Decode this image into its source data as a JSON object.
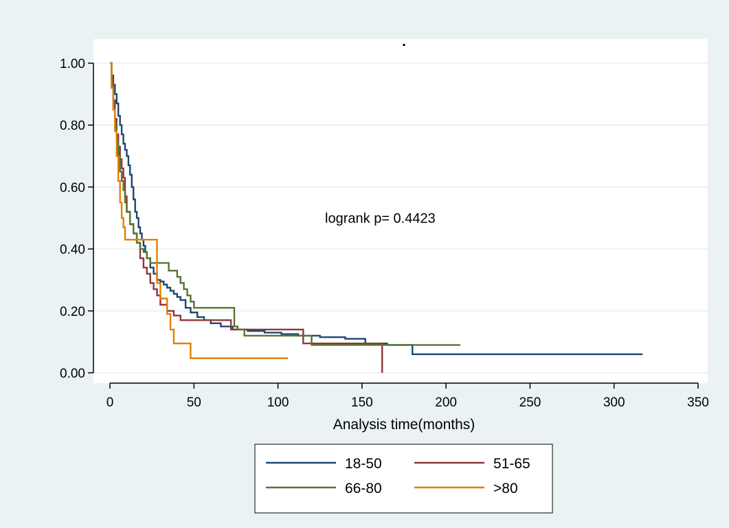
{
  "chart_data": {
    "type": "line",
    "title": ".",
    "xlabel": "Analysis time(months)",
    "ylabel": "",
    "xlim": [
      0,
      350
    ],
    "ylim": [
      0,
      1
    ],
    "xticks": [
      0,
      50,
      100,
      150,
      200,
      250,
      300,
      350
    ],
    "yticks": [
      0,
      0.2,
      0.4,
      0.6,
      0.8,
      1.0
    ],
    "xtick_labels": [
      "0",
      "50",
      "100",
      "150",
      "200",
      "250",
      "300",
      "350"
    ],
    "ytick_labels": [
      "0.00",
      "0.20",
      "0.40",
      "0.60",
      "0.80",
      "1.00"
    ],
    "grid": "horizontal",
    "step": true,
    "annotation": {
      "text": "logrank  p= 0.4423",
      "x": 128,
      "y": 0.5
    },
    "legend_placement": "bottom",
    "series": [
      {
        "name": "18-50",
        "color": "#1a476f",
        "x": [
          0,
          1,
          2,
          3,
          4,
          5,
          6,
          7,
          8,
          9,
          10,
          11,
          12,
          13,
          14,
          15,
          16,
          17,
          18,
          19,
          20,
          21,
          22,
          24,
          26,
          28,
          30,
          32,
          34,
          36,
          38,
          40,
          42,
          45,
          48,
          52,
          56,
          60,
          66,
          73,
          82,
          92,
          102,
          112,
          125,
          140,
          152,
          165,
          180,
          317
        ],
        "y": [
          1.0,
          0.96,
          0.93,
          0.9,
          0.87,
          0.83,
          0.8,
          0.77,
          0.74,
          0.72,
          0.7,
          0.67,
          0.64,
          0.6,
          0.56,
          0.52,
          0.5,
          0.47,
          0.45,
          0.43,
          0.41,
          0.39,
          0.37,
          0.34,
          0.32,
          0.3,
          0.295,
          0.285,
          0.275,
          0.265,
          0.255,
          0.245,
          0.235,
          0.21,
          0.195,
          0.18,
          0.17,
          0.16,
          0.15,
          0.14,
          0.135,
          0.13,
          0.125,
          0.12,
          0.115,
          0.11,
          0.095,
          0.09,
          0.06,
          0.06
        ]
      },
      {
        "name": "51-65",
        "color": "#90353b",
        "x": [
          0,
          1,
          2,
          3,
          4,
          5,
          6,
          7,
          8,
          9,
          10,
          12,
          14,
          16,
          18,
          20,
          22,
          24,
          26,
          28,
          30,
          34,
          38,
          42,
          46,
          50,
          55,
          72,
          95,
          113,
          115,
          130,
          162,
          162
        ],
        "y": [
          1.0,
          0.95,
          0.88,
          0.82,
          0.77,
          0.73,
          0.69,
          0.66,
          0.63,
          0.57,
          0.52,
          0.48,
          0.45,
          0.42,
          0.37,
          0.34,
          0.32,
          0.29,
          0.27,
          0.25,
          0.22,
          0.2,
          0.185,
          0.17,
          0.17,
          0.17,
          0.17,
          0.14,
          0.14,
          0.14,
          0.095,
          0.095,
          0.095,
          0.0
        ]
      },
      {
        "name": "66-80",
        "color": "#55752f",
        "x": [
          0,
          1,
          2,
          3,
          4,
          5,
          6,
          7,
          8,
          9,
          10,
          12,
          14,
          16,
          18,
          20,
          22,
          24,
          26,
          28,
          30,
          35,
          40,
          42,
          44,
          46,
          48,
          50,
          60,
          70,
          73,
          74,
          76,
          80,
          100,
          120,
          150,
          208
        ],
        "y": [
          1.0,
          0.93,
          0.85,
          0.81,
          0.75,
          0.7,
          0.65,
          0.62,
          0.59,
          0.55,
          0.52,
          0.48,
          0.45,
          0.42,
          0.4,
          0.39,
          0.37,
          0.355,
          0.355,
          0.355,
          0.355,
          0.33,
          0.31,
          0.29,
          0.27,
          0.25,
          0.23,
          0.21,
          0.21,
          0.21,
          0.21,
          0.15,
          0.14,
          0.12,
          0.12,
          0.09,
          0.09,
          0.087
        ]
      },
      {
        "name": ">80",
        "color": "#e37e00",
        "x": [
          0,
          1,
          2,
          3,
          4,
          5,
          6,
          7,
          8,
          9,
          10,
          12,
          14,
          16,
          18,
          20,
          22,
          24,
          26,
          28,
          30,
          34,
          36,
          38,
          40,
          48,
          106
        ],
        "y": [
          1.0,
          0.92,
          0.85,
          0.78,
          0.7,
          0.62,
          0.55,
          0.5,
          0.47,
          0.43,
          0.43,
          0.43,
          0.43,
          0.43,
          0.43,
          0.43,
          0.43,
          0.43,
          0.43,
          0.29,
          0.24,
          0.19,
          0.14,
          0.095,
          0.095,
          0.047,
          0.047
        ]
      }
    ]
  },
  "legend": {
    "items": [
      {
        "label": "18-50",
        "color": "#1a476f"
      },
      {
        "label": "51-65",
        "color": "#90353b"
      },
      {
        "label": "66-80",
        "color": "#55752f"
      },
      {
        "label": ">80",
        "color": "#e37e00"
      }
    ]
  }
}
